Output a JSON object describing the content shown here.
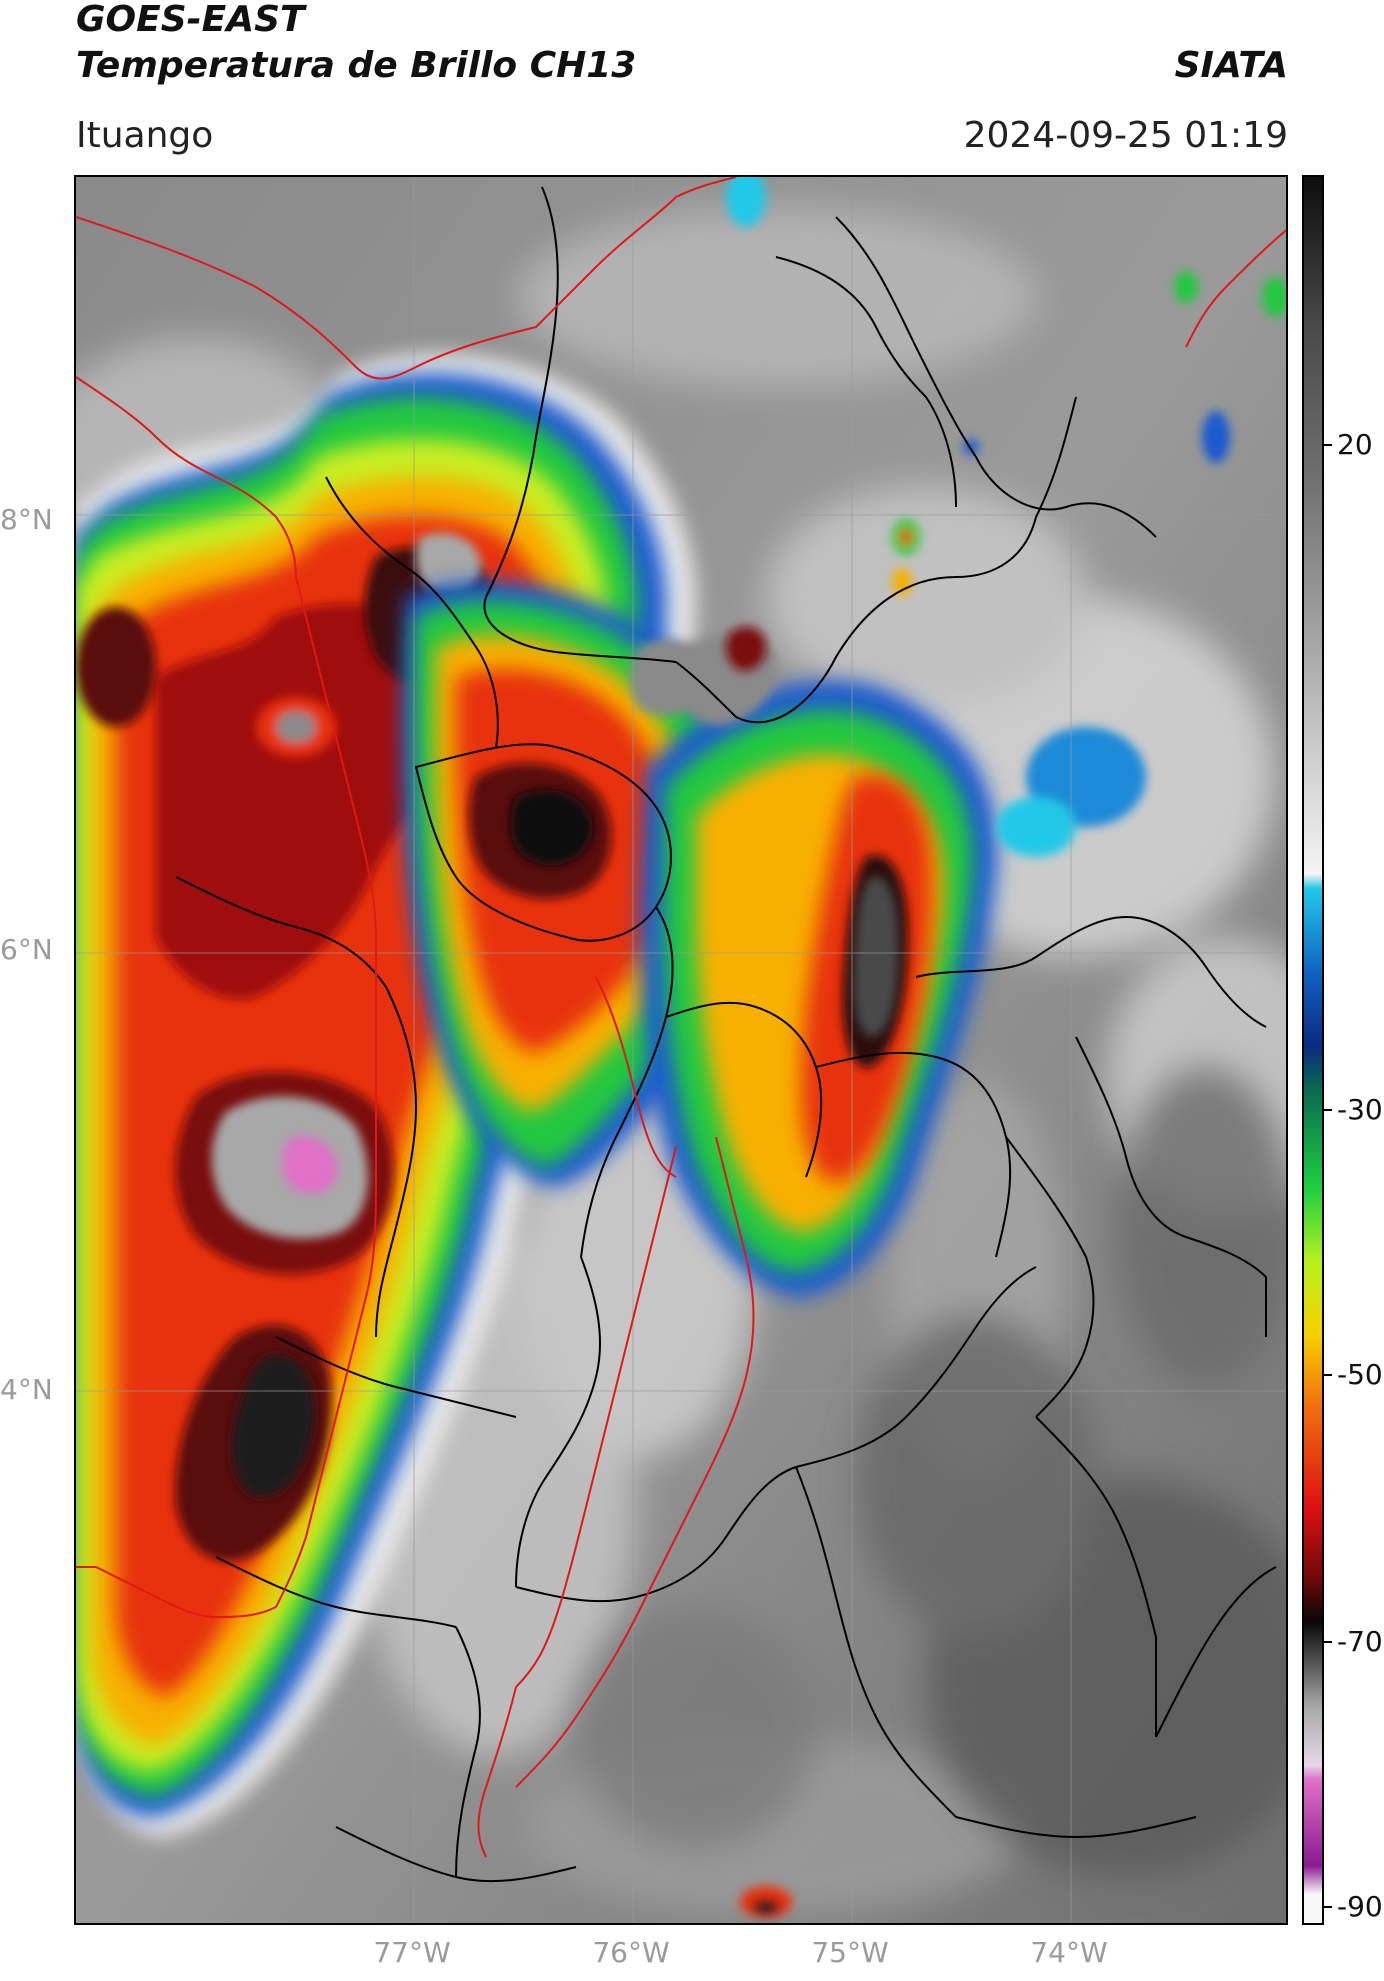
{
  "header": {
    "title_line1": "GOES-EAST",
    "title_line2": "Temperatura de Brillo CH13",
    "brand": "SIATA",
    "region": "Ituango",
    "timestamp": "2024-09-25 01:19"
  },
  "map": {
    "lat_labels": [
      "8°N",
      "6°N",
      "4°N"
    ],
    "lon_labels": [
      "77°W",
      "76°W",
      "75°W",
      "74°W"
    ],
    "gridline_color": "#9a9a9a",
    "department_border_color": "#000000",
    "country_border_color": "#e01818",
    "background_gray": "#7a7a7a"
  },
  "colorbar": {
    "tick_labels": [
      "20",
      "-30",
      "-50",
      "-70",
      "-90"
    ],
    "stops": [
      {
        "value": 30,
        "color": "#101010"
      },
      {
        "value": 20,
        "color": "#4a4a4a"
      },
      {
        "value": 10,
        "color": "#6e6e6e"
      },
      {
        "value": 0,
        "color": "#9c9c9c"
      },
      {
        "value": -10,
        "color": "#cfcfcf"
      },
      {
        "value": -18,
        "color": "#f4f4f4"
      },
      {
        "value": -19,
        "color": "#22c8e8"
      },
      {
        "value": -25,
        "color": "#1060c0"
      },
      {
        "value": -30,
        "color": "#0a2a80"
      },
      {
        "value": -33,
        "color": "#0a6a50"
      },
      {
        "value": -40,
        "color": "#20d040"
      },
      {
        "value": -45,
        "color": "#b8f020"
      },
      {
        "value": -50,
        "color": "#f8d000"
      },
      {
        "value": -55,
        "color": "#f07010"
      },
      {
        "value": -62,
        "color": "#e01010"
      },
      {
        "value": -67,
        "color": "#700808"
      },
      {
        "value": -70,
        "color": "#080808"
      },
      {
        "value": -76,
        "color": "#a8a8a8"
      },
      {
        "value": -80,
        "color": "#e8d8e8"
      },
      {
        "value": -81,
        "color": "#e070c8"
      },
      {
        "value": -87,
        "color": "#8a1a90"
      },
      {
        "value": -89,
        "color": "#f8f8f8"
      }
    ]
  }
}
